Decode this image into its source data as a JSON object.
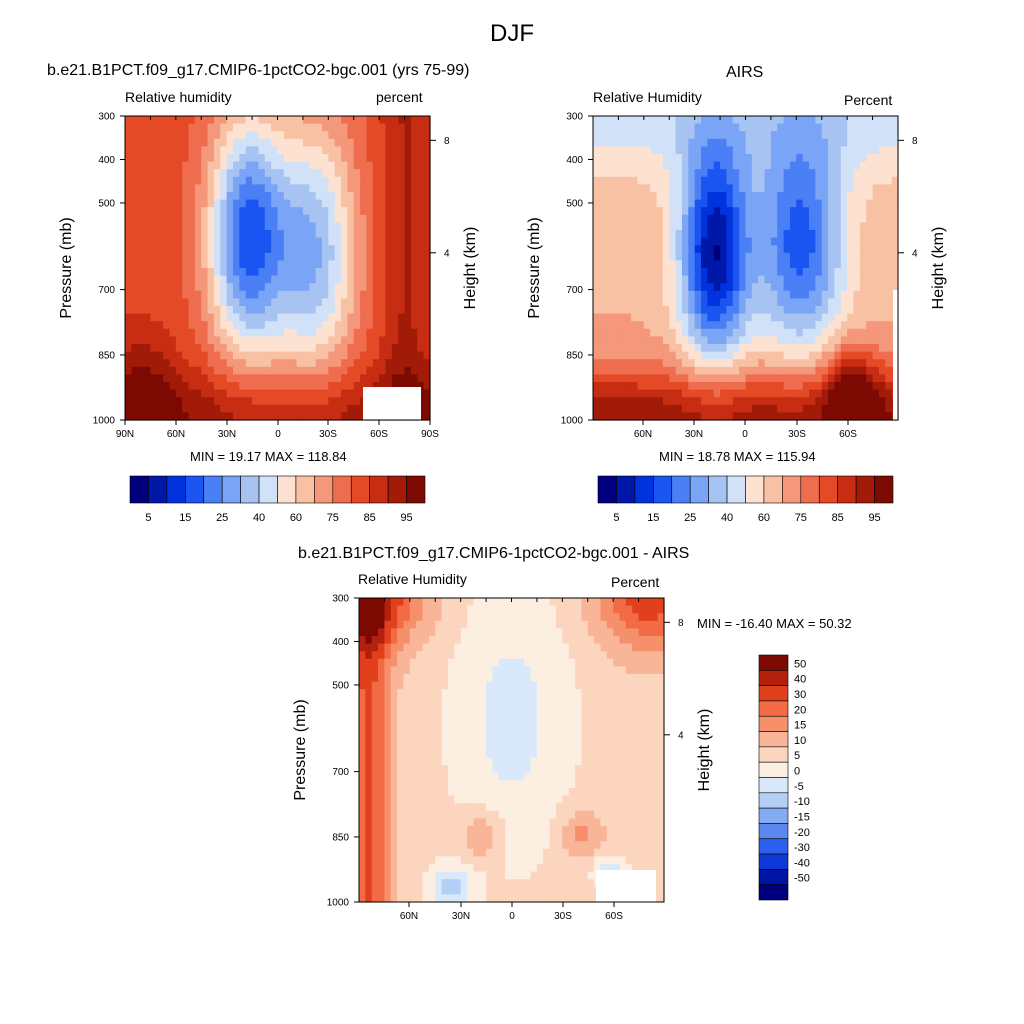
{
  "page_title": "DJF",
  "chart_data": [
    {
      "type": "heatmap",
      "id": "model",
      "title": "b.e21.B1PCT.f09_g17.CMIP6-1pctCO2-bgc.001 (yrs 75-99)",
      "left_label": "Relative humidity",
      "right_label": "percent",
      "ylabel": "Pressure (mb)",
      "y2label": "Height (km)",
      "x_ticks": [
        "90N",
        "60N",
        "30N",
        "0",
        "30S",
        "60S",
        "90S"
      ],
      "y_ticks": [
        "300",
        "400",
        "500",
        "700",
        "850",
        "1000"
      ],
      "y2_ticks": [
        "8",
        "4"
      ],
      "min_max": "MIN =  19.17  MAX = 118.84",
      "colorbar_labels": [
        "5",
        "15",
        "25",
        "40",
        "60",
        "75",
        "85",
        "95"
      ],
      "colorbar_levels": [
        5,
        10,
        15,
        20,
        25,
        30,
        40,
        50,
        60,
        70,
        75,
        80,
        85,
        90,
        95
      ],
      "colorbar_colors": [
        "#00007f",
        "#0018a8",
        "#0033dd",
        "#1a55f2",
        "#4a7ff5",
        "#7aa4f5",
        "#a7c3f2",
        "#d1e2f8",
        "#fde2d1",
        "#f9c1a4",
        "#f4977a",
        "#ef6d4f",
        "#e54a26",
        "#c72d12",
        "#a21a08",
        "#7d0a02"
      ],
      "xlim": [
        -90,
        90
      ],
      "ylim": [
        1000,
        300
      ],
      "range": [
        19.17,
        118.84
      ]
    },
    {
      "type": "heatmap",
      "id": "airs",
      "title": "AIRS",
      "left_label": "Relative Humidity",
      "right_label": "Percent",
      "ylabel": "Pressure (mb)",
      "y2label": "Height (km)",
      "x_ticks": [
        "60N",
        "30N",
        "0",
        "30S",
        "60S"
      ],
      "y_ticks": [
        "300",
        "400",
        "500",
        "700",
        "850",
        "1000"
      ],
      "y2_ticks": [
        "8",
        "4"
      ],
      "min_max": "MIN =  18.78  MAX = 115.94",
      "colorbar_labels": [
        "5",
        "15",
        "25",
        "40",
        "60",
        "75",
        "85",
        "95"
      ],
      "colorbar_levels": [
        5,
        10,
        15,
        20,
        25,
        30,
        40,
        50,
        60,
        70,
        75,
        80,
        85,
        90,
        95
      ],
      "colorbar_colors": [
        "#00007f",
        "#0018a8",
        "#0033dd",
        "#1a55f2",
        "#4a7ff5",
        "#7aa4f5",
        "#a7c3f2",
        "#d1e2f8",
        "#fde2d1",
        "#f9c1a4",
        "#f4977a",
        "#ef6d4f",
        "#e54a26",
        "#c72d12",
        "#a21a08",
        "#7d0a02"
      ],
      "ylim": [
        1000,
        300
      ],
      "range": [
        18.78,
        115.94
      ]
    },
    {
      "type": "heatmap",
      "id": "diff",
      "title": "b.e21.B1PCT.f09_g17.CMIP6-1pctCO2-bgc.001 - AIRS",
      "left_label": "Relative Humidity",
      "right_label": "Percent",
      "ylabel": "Pressure (mb)",
      "y2label": "Height (km)",
      "x_ticks": [
        "60N",
        "30N",
        "0",
        "30S",
        "60S"
      ],
      "y_ticks": [
        "300",
        "400",
        "500",
        "700",
        "850",
        "1000"
      ],
      "y2_ticks": [
        "8",
        "4"
      ],
      "min_max": "MIN = -16.40  MAX =  50.32",
      "colorbar_labels": [
        "50",
        "40",
        "30",
        "20",
        "15",
        "10",
        "5",
        "0",
        "-5",
        "-10",
        "-15",
        "-20",
        "-30",
        "-40",
        "-50"
      ],
      "colorbar_colors": [
        "#7d0a02",
        "#b3200d",
        "#e0401c",
        "#f36b45",
        "#f6906b",
        "#f9b597",
        "#fcd5bf",
        "#fdeee2",
        "#d9e8fb",
        "#b3cff6",
        "#85acf2",
        "#5a86ee",
        "#2d5ff0",
        "#0f38d8",
        "#0015a3",
        "#00007f"
      ],
      "ylim": [
        1000,
        300
      ],
      "range": [
        -16.4,
        50.32
      ]
    }
  ]
}
